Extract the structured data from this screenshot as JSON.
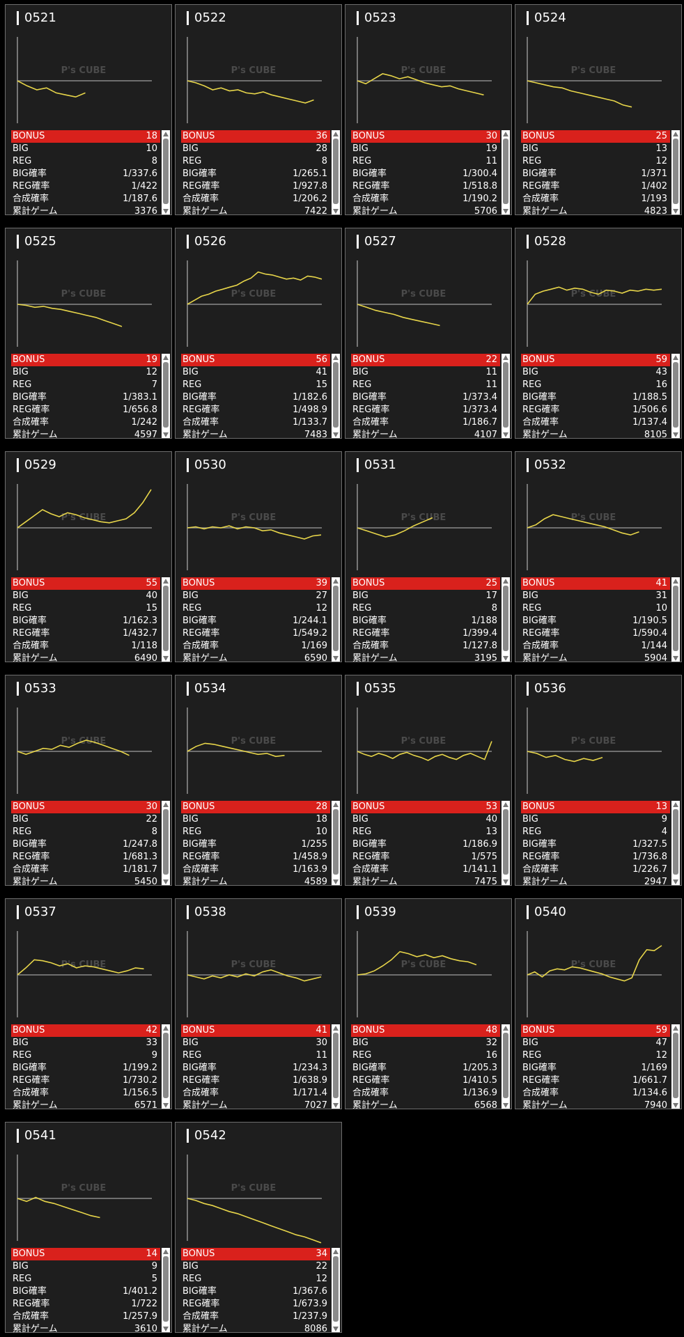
{
  "labels": {
    "bonus": "BONUS",
    "big": "BIG",
    "reg": "REG",
    "big_rate": "BIG確率",
    "reg_rate": "REG確率",
    "combined_rate": "合成確率",
    "total_games": "累計ゲーム",
    "watermark": "P's CUBE"
  },
  "colors": {
    "bonus_bar": "#d9211c",
    "graph_line": "#e8d64a",
    "panel": "#1e1e1e"
  },
  "machines": [
    {
      "id": "0521",
      "bonus": "18",
      "big": "10",
      "reg": "8",
      "big_rate": "1/337.6",
      "reg_rate": "1/422",
      "combined_rate": "1/187.6",
      "total_games": "3376",
      "graph": [
        0,
        -500,
        -900,
        -700,
        -1200,
        -1400,
        -1600,
        -1200
      ]
    },
    {
      "id": "0522",
      "bonus": "36",
      "big": "28",
      "reg": "8",
      "big_rate": "1/265.1",
      "reg_rate": "1/927.8",
      "combined_rate": "1/206.2",
      "total_games": "7422",
      "graph": [
        0,
        -200,
        -500,
        -900,
        -700,
        -1000,
        -900,
        -1200,
        -1300,
        -1100,
        -1400,
        -1600,
        -1800,
        -2000,
        -2200,
        -1900
      ]
    },
    {
      "id": "0523",
      "bonus": "30",
      "big": "19",
      "reg": "11",
      "big_rate": "1/300.4",
      "reg_rate": "1/518.8",
      "combined_rate": "1/190.2",
      "total_games": "5706",
      "graph": [
        0,
        -300,
        200,
        700,
        500,
        200,
        400,
        100,
        -200,
        -400,
        -600,
        -500,
        -800,
        -1000,
        -1200,
        -1400
      ]
    },
    {
      "id": "0524",
      "bonus": "25",
      "big": "13",
      "reg": "12",
      "big_rate": "1/371",
      "reg_rate": "1/402",
      "combined_rate": "1/193",
      "total_games": "4823",
      "graph": [
        0,
        -200,
        -400,
        -600,
        -700,
        -1000,
        -1200,
        -1400,
        -1600,
        -1800,
        -2000,
        -2400,
        -2600
      ]
    },
    {
      "id": "0525",
      "bonus": "19",
      "big": "12",
      "reg": "7",
      "big_rate": "1/383.1",
      "reg_rate": "1/656.8",
      "combined_rate": "1/242",
      "total_games": "4597",
      "graph": [
        0,
        -100,
        -300,
        -200,
        -400,
        -500,
        -700,
        -900,
        -1100,
        -1300,
        -1600,
        -1900,
        -2200
      ]
    },
    {
      "id": "0526",
      "bonus": "56",
      "big": "41",
      "reg": "15",
      "big_rate": "1/182.6",
      "reg_rate": "1/498.9",
      "combined_rate": "1/133.7",
      "total_games": "7483",
      "graph": [
        0,
        400,
        800,
        1000,
        1300,
        1500,
        1700,
        1900,
        2300,
        2600,
        3200,
        3000,
        2900,
        2700,
        2500,
        2600,
        2400,
        2800,
        2700,
        2500
      ]
    },
    {
      "id": "0527",
      "bonus": "22",
      "big": "11",
      "reg": "11",
      "big_rate": "1/373.4",
      "reg_rate": "1/373.4",
      "combined_rate": "1/186.7",
      "total_games": "4107",
      "graph": [
        0,
        -300,
        -600,
        -800,
        -1000,
        -1300,
        -1500,
        -1700,
        -1900,
        -2100
      ]
    },
    {
      "id": "0528",
      "bonus": "59",
      "big": "43",
      "reg": "16",
      "big_rate": "1/188.5",
      "reg_rate": "1/506.6",
      "combined_rate": "1/137.4",
      "total_games": "8105",
      "graph": [
        0,
        1000,
        1300,
        1500,
        1700,
        1400,
        1600,
        1500,
        1200,
        1000,
        1400,
        1300,
        1100,
        1400,
        1300,
        1500,
        1400,
        1500
      ]
    },
    {
      "id": "0529",
      "bonus": "55",
      "big": "40",
      "reg": "15",
      "big_rate": "1/162.3",
      "reg_rate": "1/432.7",
      "combined_rate": "1/118",
      "total_games": "6490",
      "graph": [
        0,
        600,
        1200,
        1800,
        1400,
        1100,
        1500,
        1300,
        1000,
        800,
        600,
        500,
        700,
        900,
        1500,
        2500,
        3800
      ]
    },
    {
      "id": "0530",
      "bonus": "39",
      "big": "27",
      "reg": "12",
      "big_rate": "1/244.1",
      "reg_rate": "1/549.2",
      "combined_rate": "1/169",
      "total_games": "6590",
      "graph": [
        0,
        100,
        -100,
        100,
        0,
        200,
        -100,
        100,
        0,
        -300,
        -200,
        -500,
        -700,
        -900,
        -1100,
        -800,
        -700
      ]
    },
    {
      "id": "0531",
      "bonus": "25",
      "big": "17",
      "reg": "8",
      "big_rate": "1/188",
      "reg_rate": "1/399.4",
      "combined_rate": "1/127.8",
      "total_games": "3195",
      "graph": [
        0,
        -300,
        -600,
        -900,
        -700,
        -300,
        200,
        600,
        1000
      ]
    },
    {
      "id": "0532",
      "bonus": "41",
      "big": "31",
      "reg": "10",
      "big_rate": "1/190.5",
      "reg_rate": "1/590.4",
      "combined_rate": "1/144",
      "total_games": "5904",
      "graph": [
        0,
        300,
        900,
        1300,
        1100,
        900,
        700,
        500,
        300,
        100,
        -200,
        -500,
        -700,
        -400
      ]
    },
    {
      "id": "0533",
      "bonus": "30",
      "big": "22",
      "reg": "8",
      "big_rate": "1/247.8",
      "reg_rate": "1/681.3",
      "combined_rate": "1/181.7",
      "total_games": "5450",
      "graph": [
        0,
        -300,
        0,
        300,
        200,
        600,
        400,
        800,
        1100,
        900,
        600,
        300,
        0,
        -400
      ]
    },
    {
      "id": "0534",
      "bonus": "28",
      "big": "18",
      "reg": "10",
      "big_rate": "1/255",
      "reg_rate": "1/458.9",
      "combined_rate": "1/163.9",
      "total_games": "4589",
      "graph": [
        0,
        500,
        800,
        700,
        500,
        300,
        100,
        -100,
        -300,
        -200,
        -500,
        -400
      ]
    },
    {
      "id": "0535",
      "bonus": "53",
      "big": "40",
      "reg": "13",
      "big_rate": "1/186.9",
      "reg_rate": "1/575",
      "combined_rate": "1/141.1",
      "total_games": "7475",
      "graph": [
        0,
        -300,
        -500,
        -200,
        -400,
        -700,
        -300,
        -100,
        -400,
        -600,
        -900,
        -500,
        -300,
        -600,
        -800,
        -400,
        -200,
        -500,
        -800,
        1000
      ]
    },
    {
      "id": "0536",
      "bonus": "13",
      "big": "9",
      "reg": "4",
      "big_rate": "1/327.5",
      "reg_rate": "1/736.8",
      "combined_rate": "1/226.7",
      "total_games": "2947",
      "graph": [
        0,
        -200,
        -600,
        -400,
        -800,
        -1000,
        -700,
        -900,
        -600
      ]
    },
    {
      "id": "0537",
      "bonus": "42",
      "big": "33",
      "reg": "9",
      "big_rate": "1/199.2",
      "reg_rate": "1/730.2",
      "combined_rate": "1/156.5",
      "total_games": "6571",
      "graph": [
        0,
        700,
        1500,
        1400,
        1200,
        900,
        1100,
        700,
        900,
        800,
        600,
        400,
        200,
        400,
        700,
        600
      ]
    },
    {
      "id": "0538",
      "bonus": "41",
      "big": "30",
      "reg": "11",
      "big_rate": "1/234.3",
      "reg_rate": "1/638.9",
      "combined_rate": "1/171.4",
      "total_games": "7027",
      "graph": [
        0,
        -200,
        -400,
        -100,
        -300,
        0,
        -200,
        100,
        -100,
        300,
        500,
        200,
        -100,
        -300,
        -600,
        -400,
        -200
      ]
    },
    {
      "id": "0539",
      "bonus": "48",
      "big": "32",
      "reg": "16",
      "big_rate": "1/205.3",
      "reg_rate": "1/410.5",
      "combined_rate": "1/136.9",
      "total_games": "6568",
      "graph": [
        0,
        100,
        400,
        900,
        1500,
        2300,
        2100,
        1800,
        2000,
        1700,
        1900,
        1600,
        1400,
        1300,
        1000
      ]
    },
    {
      "id": "0540",
      "bonus": "59",
      "big": "47",
      "reg": "12",
      "big_rate": "1/169",
      "reg_rate": "1/661.7",
      "combined_rate": "1/134.6",
      "total_games": "7940",
      "graph": [
        0,
        300,
        -200,
        400,
        600,
        500,
        800,
        700,
        500,
        300,
        100,
        -200,
        -400,
        -600,
        -300,
        1500,
        2500,
        2400,
        2900
      ]
    },
    {
      "id": "0541",
      "bonus": "14",
      "big": "9",
      "reg": "5",
      "big_rate": "1/401.2",
      "reg_rate": "1/722",
      "combined_rate": "1/257.9",
      "total_games": "3610",
      "graph": [
        0,
        -300,
        100,
        -300,
        -500,
        -800,
        -1100,
        -1400,
        -1700,
        -1900
      ]
    },
    {
      "id": "0542",
      "bonus": "34",
      "big": "22",
      "reg": "12",
      "big_rate": "1/367.6",
      "reg_rate": "1/673.9",
      "combined_rate": "1/237.9",
      "total_games": "8086",
      "graph": [
        0,
        -200,
        -500,
        -700,
        -1000,
        -1300,
        -1500,
        -1800,
        -2100,
        -2400,
        -2700,
        -3000,
        -3300,
        -3600,
        -3800,
        -4100,
        -4400
      ]
    }
  ]
}
